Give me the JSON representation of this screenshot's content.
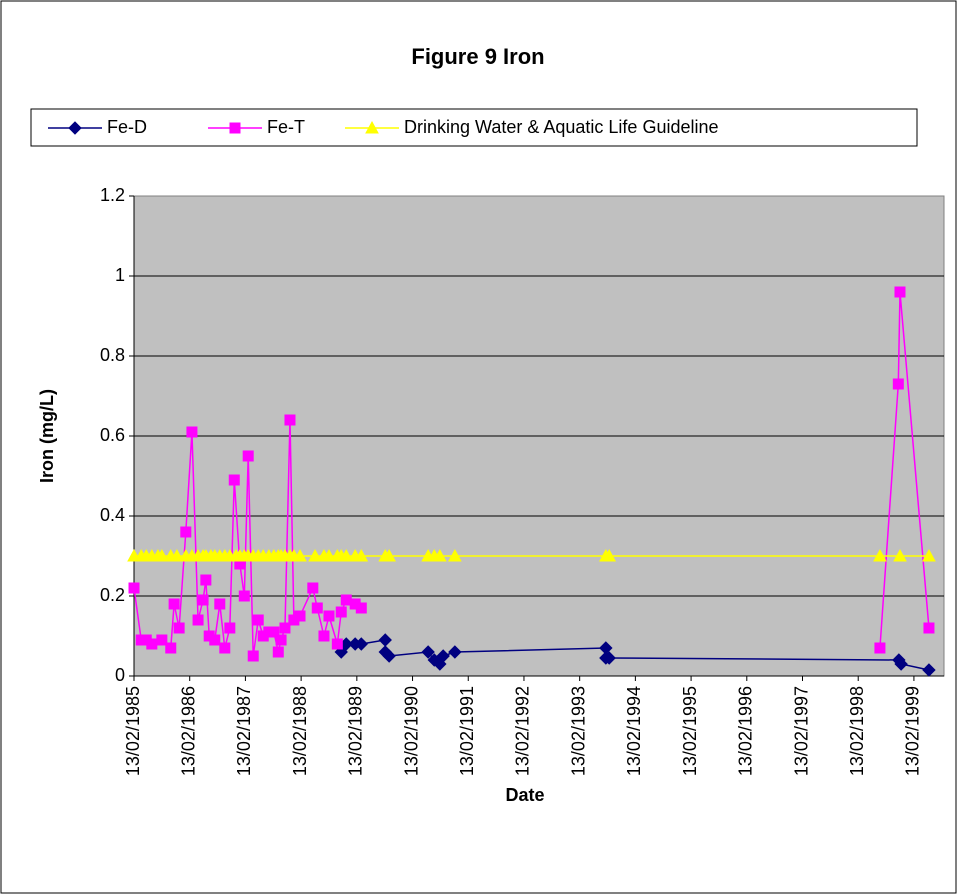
{
  "chart_data": {
    "type": "line",
    "title": "Figure 9 Iron",
    "x_label": "Date",
    "y_label": "Iron (mg/L)",
    "xlim": [
      1985.12,
      1999.66
    ],
    "ylim": [
      0,
      1.2
    ],
    "yticks": [
      0,
      0.2,
      0.4,
      0.6,
      0.8,
      1,
      1.2
    ],
    "xticks": [
      {
        "value": 1985.12,
        "label": "13/02/1985"
      },
      {
        "value": 1986.12,
        "label": "13/02/1986"
      },
      {
        "value": 1987.12,
        "label": "13/02/1987"
      },
      {
        "value": 1988.12,
        "label": "13/02/1988"
      },
      {
        "value": 1989.12,
        "label": "13/02/1989"
      },
      {
        "value": 1990.12,
        "label": "13/02/1990"
      },
      {
        "value": 1991.12,
        "label": "13/02/1991"
      },
      {
        "value": 1992.12,
        "label": "13/02/1992"
      },
      {
        "value": 1993.12,
        "label": "13/02/1993"
      },
      {
        "value": 1994.12,
        "label": "13/02/1994"
      },
      {
        "value": 1995.12,
        "label": "13/02/1995"
      },
      {
        "value": 1996.12,
        "label": "13/02/1996"
      },
      {
        "value": 1997.12,
        "label": "13/02/1997"
      },
      {
        "value": 1998.12,
        "label": "13/02/1998"
      },
      {
        "value": 1999.12,
        "label": "13/02/1999"
      }
    ],
    "grid": true,
    "legend": "top",
    "series": [
      {
        "name": "Fe-D",
        "color": "#000080",
        "marker": "diamond",
        "x": [
          1988.84,
          1988.93,
          1989.09,
          1989.2,
          1989.63,
          1989.63,
          1989.7,
          1990.4,
          1990.51,
          1990.61,
          1990.67,
          1990.88,
          1993.59,
          1993.59,
          1993.65,
          1998.85,
          1998.89,
          1999.39
        ],
        "values": [
          0.06,
          0.08,
          0.08,
          0.08,
          0.09,
          0.06,
          0.05,
          0.06,
          0.04,
          0.03,
          0.05,
          0.06,
          0.07,
          0.045,
          0.045,
          0.04,
          0.03,
          0.015
        ]
      },
      {
        "name": "Fe-T",
        "color": "#ff00ff",
        "marker": "square",
        "x": [
          1985.12,
          1985.25,
          1985.34,
          1985.44,
          1985.62,
          1985.78,
          1985.84,
          1985.93,
          1986.05,
          1986.16,
          1986.27,
          1986.36,
          1986.41,
          1986.47,
          1986.57,
          1986.66,
          1986.75,
          1986.84,
          1986.92,
          1987.02,
          1987.1,
          1987.17,
          1987.26,
          1987.35,
          1987.44,
          1987.54,
          1987.63,
          1987.71,
          1987.76,
          1987.83,
          1987.92,
          1987.99,
          1988.1,
          1988.33,
          1988.41,
          1988.53,
          1988.62,
          1988.77,
          1988.84,
          1988.93,
          1989.09,
          1989.2,
          null,
          1998.51,
          1998.84,
          1998.87,
          1999.39
        ],
        "values": [
          0.22,
          0.09,
          0.09,
          0.08,
          0.09,
          0.07,
          0.18,
          0.12,
          0.36,
          0.61,
          0.14,
          0.19,
          0.24,
          0.1,
          0.09,
          0.18,
          0.07,
          0.12,
          0.49,
          0.28,
          0.2,
          0.55,
          0.05,
          0.14,
          0.1,
          0.11,
          0.11,
          0.06,
          0.09,
          0.12,
          0.64,
          0.14,
          0.15,
          0.22,
          0.17,
          0.1,
          0.15,
          0.08,
          0.16,
          0.19,
          0.18,
          0.17,
          null,
          0.07,
          0.73,
          0.96,
          0.12
        ]
      },
      {
        "name": "Drinking Water & Aquatic Life Guideline",
        "color": "#ffff00",
        "marker": "triangle",
        "x": [
          1985.12,
          1985.25,
          1985.34,
          1985.44,
          1985.55,
          1985.62,
          1985.78,
          1985.89,
          1986.05,
          1986.16,
          1986.27,
          1986.36,
          1986.41,
          1986.5,
          1986.57,
          1986.66,
          1986.75,
          1986.84,
          1986.95,
          1987.02,
          1987.1,
          1987.17,
          1987.26,
          1987.35,
          1987.44,
          1987.54,
          1987.63,
          1987.71,
          1987.76,
          1987.83,
          1987.92,
          1987.99,
          1988.1,
          1988.37,
          1988.53,
          1988.62,
          1988.77,
          1988.84,
          1988.93,
          1989.09,
          1989.2,
          1989.63,
          1989.7,
          1990.4,
          1990.51,
          1990.61,
          1990.88,
          1993.59,
          1993.65,
          1998.51,
          1998.87,
          1999.39
        ],
        "values": [
          0.3,
          0.3,
          0.3,
          0.3,
          0.3,
          0.3,
          0.3,
          0.3,
          0.3,
          0.3,
          0.3,
          0.3,
          0.3,
          0.3,
          0.3,
          0.3,
          0.3,
          0.3,
          0.3,
          0.3,
          0.3,
          0.3,
          0.3,
          0.3,
          0.3,
          0.3,
          0.3,
          0.3,
          0.3,
          0.3,
          0.3,
          0.3,
          0.3,
          0.3,
          0.3,
          0.3,
          0.3,
          0.3,
          0.3,
          0.3,
          0.3,
          0.3,
          0.3,
          0.3,
          0.3,
          0.3,
          0.3,
          0.3,
          0.3,
          0.3,
          0.3,
          0.3
        ]
      }
    ]
  }
}
